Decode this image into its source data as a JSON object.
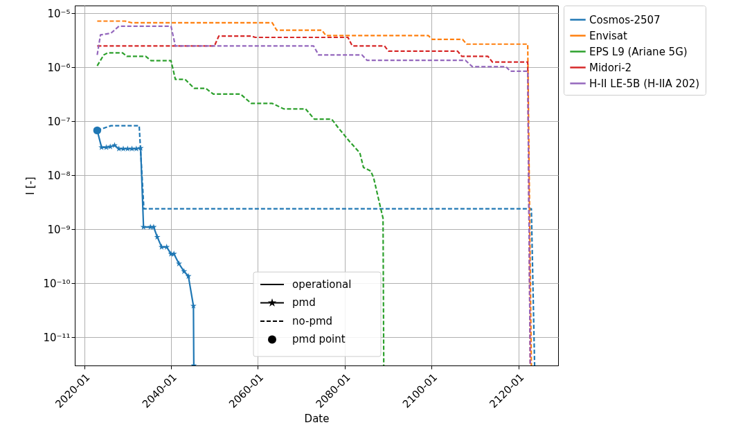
{
  "chart_data": {
    "type": "line",
    "xlabel": "Date",
    "ylabel": "I [-]",
    "log": "y",
    "grid": true,
    "legend": "top right",
    "xlim": [
      "2017-11",
      "2129-03"
    ],
    "xticks": [
      "2020-01",
      "2040-01",
      "2060-01",
      "2080-01",
      "2100-01",
      "2120-01"
    ],
    "ylim": [
      3e-12,
      1.4e-05
    ],
    "yticks": [
      {
        "value": 1e-11,
        "label": "10⁻¹¹"
      },
      {
        "value": 1e-10,
        "label": "10⁻¹⁰"
      },
      {
        "value": 1e-09,
        "label": "10⁻⁹"
      },
      {
        "value": 1e-08,
        "label": "10⁻⁸"
      },
      {
        "value": 1e-07,
        "label": "10⁻⁷"
      },
      {
        "value": 1e-06,
        "label": "10⁻⁶"
      },
      {
        "value": 1e-05,
        "label": "10⁻⁵"
      }
    ],
    "annotations": [
      "operational",
      "pmd",
      "no-pmd",
      "pmd point"
    ],
    "series": [
      {
        "name": "Cosmos-2507",
        "color": "#1f77b4",
        "line_style": "dashed",
        "x": [
          "2023-01",
          "2026-03",
          "2032-09",
          "2033-10",
          "2123-01",
          "2123-10"
        ],
        "values": [
          6.8e-08,
          8.3e-08,
          8.3e-08,
          2.4e-09,
          2.4e-09,
          3e-12
        ]
      },
      {
        "name": "Envisat",
        "color": "#ff7f0e",
        "line_style": "dashed",
        "x": [
          "2023-01",
          "2029-06",
          "2031-01",
          "2063-05",
          "2064-05",
          "2074-10",
          "2075-09",
          "2099-04",
          "2100-03",
          "2107-03",
          "2108-02",
          "2122-03",
          "2123-01"
        ],
        "values": [
          7.2e-06,
          7.2e-06,
          6.7e-06,
          6.7e-06,
          4.9e-06,
          4.9e-06,
          3.9e-06,
          3.9e-06,
          3.3e-06,
          3.3e-06,
          2.7e-06,
          2.7e-06,
          3e-12
        ]
      },
      {
        "name": "EPS L9 (Ariane 5G)",
        "color": "#2ca02c",
        "line_style": "dashed",
        "x": [
          "2023-01",
          "2024-07",
          "2025-06",
          "2028-11",
          "2029-11",
          "2034-03",
          "2035-06",
          "2040-01",
          "2041-01",
          "2043-04",
          "2045-05",
          "2048-01",
          "2049-10",
          "2056-01",
          "2058-07",
          "2063-05",
          "2066-01",
          "2071-01",
          "2073-01",
          "2077-01",
          "2078-06",
          "2081-03",
          "2083-07",
          "2084-05",
          "2086-01",
          "2086-09",
          "2088-01",
          "2088-11",
          "2089-01"
        ],
        "values": [
          1.07e-06,
          1.7e-06,
          1.86e-06,
          1.86e-06,
          1.6e-06,
          1.6e-06,
          1.33e-06,
          1.33e-06,
          6e-07,
          6e-07,
          4.1e-07,
          4.1e-07,
          3.2e-07,
          3.2e-07,
          2.15e-07,
          2.15e-07,
          1.7e-07,
          1.7e-07,
          1.1e-07,
          1.1e-07,
          7.8e-08,
          4.2e-08,
          2.6e-08,
          1.4e-08,
          1.2e-08,
          9e-09,
          3.1e-09,
          1.6e-09,
          3e-12
        ]
      },
      {
        "name": "Midori-2",
        "color": "#d62728",
        "line_style": "dashed",
        "x": [
          "2023-01",
          "2050-01",
          "2051-01",
          "2058-07",
          "2059-06",
          "2080-10",
          "2081-10",
          "2089-03",
          "2090-02",
          "2106-01",
          "2107-01",
          "2113-01",
          "2114-01",
          "2122-03",
          "2122-10"
        ],
        "values": [
          2.5e-06,
          2.5e-06,
          3.8e-06,
          3.8e-06,
          3.6e-06,
          3.6e-06,
          2.5e-06,
          2.5e-06,
          2e-06,
          2e-06,
          1.6e-06,
          1.6e-06,
          1.26e-06,
          1.26e-06,
          3e-12
        ]
      },
      {
        "name": "H-II LE-5B (H-IIA 202)",
        "color": "#9467bd",
        "line_style": "dashed",
        "x": [
          "2023-01",
          "2023-10",
          "2026-03",
          "2028-01",
          "2040-01",
          "2041-01",
          "2072-11",
          "2074-01",
          "2084-01",
          "2085-03",
          "2107-11",
          "2109-06",
          "2117-03",
          "2118-03",
          "2122-03",
          "2122-10"
        ],
        "values": [
          1.7e-06,
          4e-06,
          4.3e-06,
          5.8e-06,
          5.8e-06,
          2.5e-06,
          2.5e-06,
          1.7e-06,
          1.7e-06,
          1.35e-06,
          1.35e-06,
          1.03e-06,
          1.03e-06,
          8.5e-07,
          8.5e-07,
          3e-12
        ]
      },
      {
        "color": "#1f77b4",
        "line_style": "solid",
        "marker": "star",
        "x": [
          "2023-01",
          "2024-01",
          "2025-02",
          "2026-01",
          "2027-01",
          "2028-01",
          "2029-01",
          "2030-01",
          "2031-01",
          "2032-01",
          "2033-01",
          "2033-09",
          "2035-04",
          "2036-01",
          "2036-11",
          "2037-11",
          "2039-01",
          "2040-01",
          "2040-09",
          "2041-11",
          "2043-01",
          "2044-01",
          "2045-03",
          "2045-04"
        ],
        "values": [
          6.8e-08,
          3.3e-08,
          3.3e-08,
          3.4e-08,
          3.6e-08,
          3.1e-08,
          3.1e-08,
          3.1e-08,
          3.1e-08,
          3.1e-08,
          3.2e-08,
          1.1e-09,
          1.1e-09,
          1.1e-09,
          7.2e-10,
          4.7e-10,
          4.7e-10,
          3.5e-10,
          3.5e-10,
          2.3e-10,
          1.66e-10,
          1.35e-10,
          3.8e-11,
          3e-12
        ]
      },
      {
        "type": "scatter",
        "color": "#1f77b4",
        "marker": "circle",
        "x": [
          "2023-01"
        ],
        "values": [
          6.8e-08
        ]
      }
    ]
  }
}
